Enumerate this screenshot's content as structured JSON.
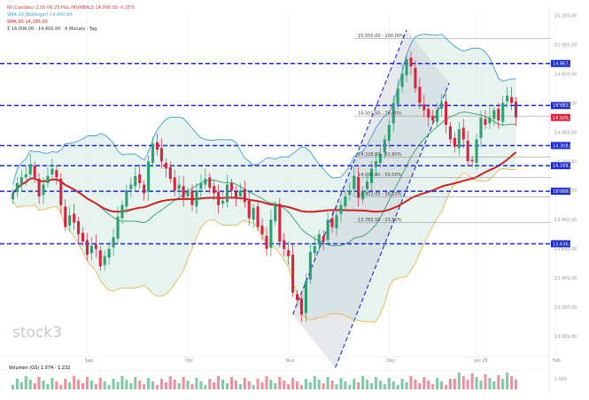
{
  "chart_data": {
    "type": "candlestick",
    "legend": [
      {
        "text": "NI (Candles) 2.00 09:25 P&L HIGHBALS 14,006.00 -0.35%",
        "color": "#d03a3a"
      },
      {
        "text": "SMA 20 (Bollinger) 14,400.00",
        "color": "#3aa0d0"
      },
      {
        "text": "SMA 50 14,185.00",
        "color": "#d02020"
      },
      {
        "text": "Σ 14,006.00 · 14,400.00 · 6 Monats · Tag",
        "color": "#333333"
      }
    ],
    "watermark": "stock3",
    "x_labels": [
      "Sep",
      "Okt",
      "Nov",
      "Dez",
      "Jan 26",
      "Feb"
    ],
    "y_ticks": [
      "15.200,00",
      "15.000,00",
      "14.800,00",
      "14.600,00",
      "14.400,00",
      "14.200,00",
      "14.000,00",
      "13.800,00",
      "13.600,00",
      "13.400,00",
      "13.200,00",
      "13.000,00"
    ],
    "y_range": [
      12880,
      15220
    ],
    "levels": [
      {
        "value": 14870,
        "label": "14.867,14",
        "kind": "blue-dashed"
      },
      {
        "value": 14582,
        "label": "14.582,23",
        "kind": "blue-dashed"
      },
      {
        "value": 14308,
        "label": "14.308,82",
        "kind": "blue-dashed"
      },
      {
        "value": 14170,
        "label": "14.169,11",
        "kind": "blue-dashed"
      },
      {
        "value": 13995,
        "label": "13.998,79",
        "kind": "blue-dashed"
      },
      {
        "value": 13635,
        "label": "13.636,55",
        "kind": "blue-dashed"
      },
      {
        "value": 15040,
        "label": "15.050,00 - 100,00%",
        "kind": "fib"
      },
      {
        "value": 14510,
        "label": "14.501,50 - 76,40%",
        "kind": "fib"
      },
      {
        "value": 14230,
        "label": "14.228,00 - 61,80%",
        "kind": "fib"
      },
      {
        "value": 14090,
        "label": "14.090,00 - 50,00%",
        "kind": "fib"
      },
      {
        "value": 13955,
        "label": "13.952,00 - 38,20%",
        "kind": "fib"
      },
      {
        "value": 13780,
        "label": "13.780,50 - 23,60%",
        "kind": "fib"
      }
    ],
    "current": {
      "value": 14500,
      "label": "14.500,16"
    },
    "volume_label": "Volumen (GS) 1.074  · 1.232",
    "volume_ticks": [
      "1.000"
    ],
    "series_close": [
      13980,
      14050,
      14090,
      14110,
      14180,
      14090,
      13960,
      14040,
      14100,
      14150,
      14090,
      13900,
      13750,
      13830,
      13780,
      13700,
      13650,
      13560,
      13620,
      13600,
      13480,
      13550,
      13600,
      13680,
      13820,
      13900,
      14000,
      14040,
      14100,
      14050,
      13980,
      14200,
      14320,
      14280,
      14200,
      14150,
      14080,
      14000,
      14040,
      13950,
      13990,
      13900,
      14000,
      14050,
      14080,
      14020,
      13980,
      13900,
      13930,
      14040,
      14000,
      13950,
      14000,
      13920,
      13810,
      13880,
      13750,
      13700,
      13600,
      13800,
      13900,
      13650,
      13600,
      13550,
      13300,
      13250,
      13150,
      13380,
      13580,
      13620,
      13700,
      13650,
      13800,
      13750,
      13830,
      13900,
      13960,
      14000,
      14100,
      13950,
      14000,
      14060,
      14150,
      14200,
      14250,
      14350,
      14450,
      14600,
      14700,
      14800,
      14900,
      14850,
      14700,
      14600,
      14550,
      14500,
      14480,
      14550,
      14600,
      14450,
      14350,
      14300,
      14420,
      14350,
      14200,
      14200,
      14350,
      14500,
      14450,
      14500,
      14550,
      14480,
      14600,
      14650,
      14600,
      14500
    ],
    "series_open": [
      13940,
      13990,
      14040,
      14090,
      14110,
      14170,
      14080,
      13970,
      14050,
      14110,
      14140,
      14080,
      13890,
      13760,
      13840,
      13790,
      13710,
      13660,
      13570,
      13630,
      13590,
      13490,
      13540,
      13610,
      13670,
      13810,
      13890,
      14010,
      14030,
      14110,
      14040,
      13990,
      14190,
      14330,
      14290,
      14190,
      14160,
      14090,
      14010,
      14030,
      13960,
      14000,
      13890,
      14010,
      14040,
      14090,
      14030,
      13990,
      13910,
      13920,
      14050,
      13990,
      13960,
      14010,
      13930,
      13800,
      13890,
      13760,
      13690,
      13610,
      13790,
      13910,
      13660,
      13590,
      13560,
      13290,
      13260,
      13160,
      13390,
      13570,
      13630,
      13690,
      13660,
      13810,
      13740,
      13840,
      13890,
      13970,
      14010,
      14090,
      13940,
      14010,
      14050,
      14160,
      14190,
      14260,
      14340,
      14460,
      14590,
      14710,
      14790,
      14910,
      14840,
      14710,
      14590,
      14560,
      14510,
      14470,
      14560,
      14610,
      14440,
      14360,
      14290,
      14430,
      14340,
      14210,
      14190,
      14360,
      14490,
      14460,
      14490,
      14560,
      14470,
      14610,
      14640,
      14610
    ]
  }
}
